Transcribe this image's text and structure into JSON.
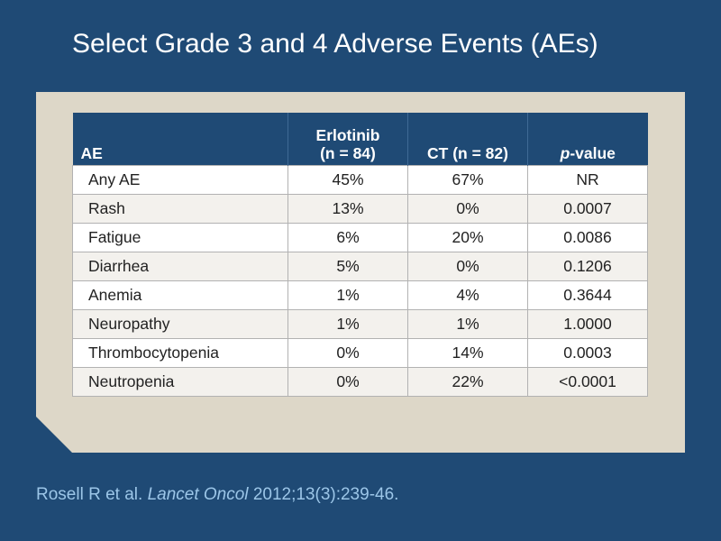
{
  "title": "Select Grade 3 and 4 Adverse Events (AEs)",
  "table": {
    "headers": {
      "ae": "AE",
      "erlotinib_line1": "Erlotinib",
      "erlotinib_line2": "(n = 84)",
      "ct": "CT (n = 82)",
      "pvalue_italic": "p",
      "pvalue_rest": "-value"
    },
    "rows": [
      {
        "ae": "Any AE",
        "erlotinib": "45%",
        "ct": "67%",
        "p": "NR"
      },
      {
        "ae": "Rash",
        "erlotinib": "13%",
        "ct": "0%",
        "p": "0.0007"
      },
      {
        "ae": "Fatigue",
        "erlotinib": "6%",
        "ct": "20%",
        "p": "0.0086"
      },
      {
        "ae": "Diarrhea",
        "erlotinib": "5%",
        "ct": "0%",
        "p": "0.1206"
      },
      {
        "ae": "Anemia",
        "erlotinib": "1%",
        "ct": "4%",
        "p": "0.3644"
      },
      {
        "ae": "Neuropathy",
        "erlotinib": "1%",
        "ct": "1%",
        "p": "1.0000"
      },
      {
        "ae": "Thrombocytopenia",
        "erlotinib": "0%",
        "ct": "14%",
        "p": "0.0003"
      },
      {
        "ae": "Neutropenia",
        "erlotinib": "0%",
        "ct": "22%",
        "p": "<0.0001"
      }
    ]
  },
  "citation": {
    "authors": "Rosell R et al.",
    "journal": "Lancet Oncol",
    "details": "2012;13(3):239-46."
  },
  "colors": {
    "background": "#1f4a75",
    "panel": "#ddd7c8",
    "title_text": "#ffffff",
    "citation_text": "#9cc6e8"
  }
}
